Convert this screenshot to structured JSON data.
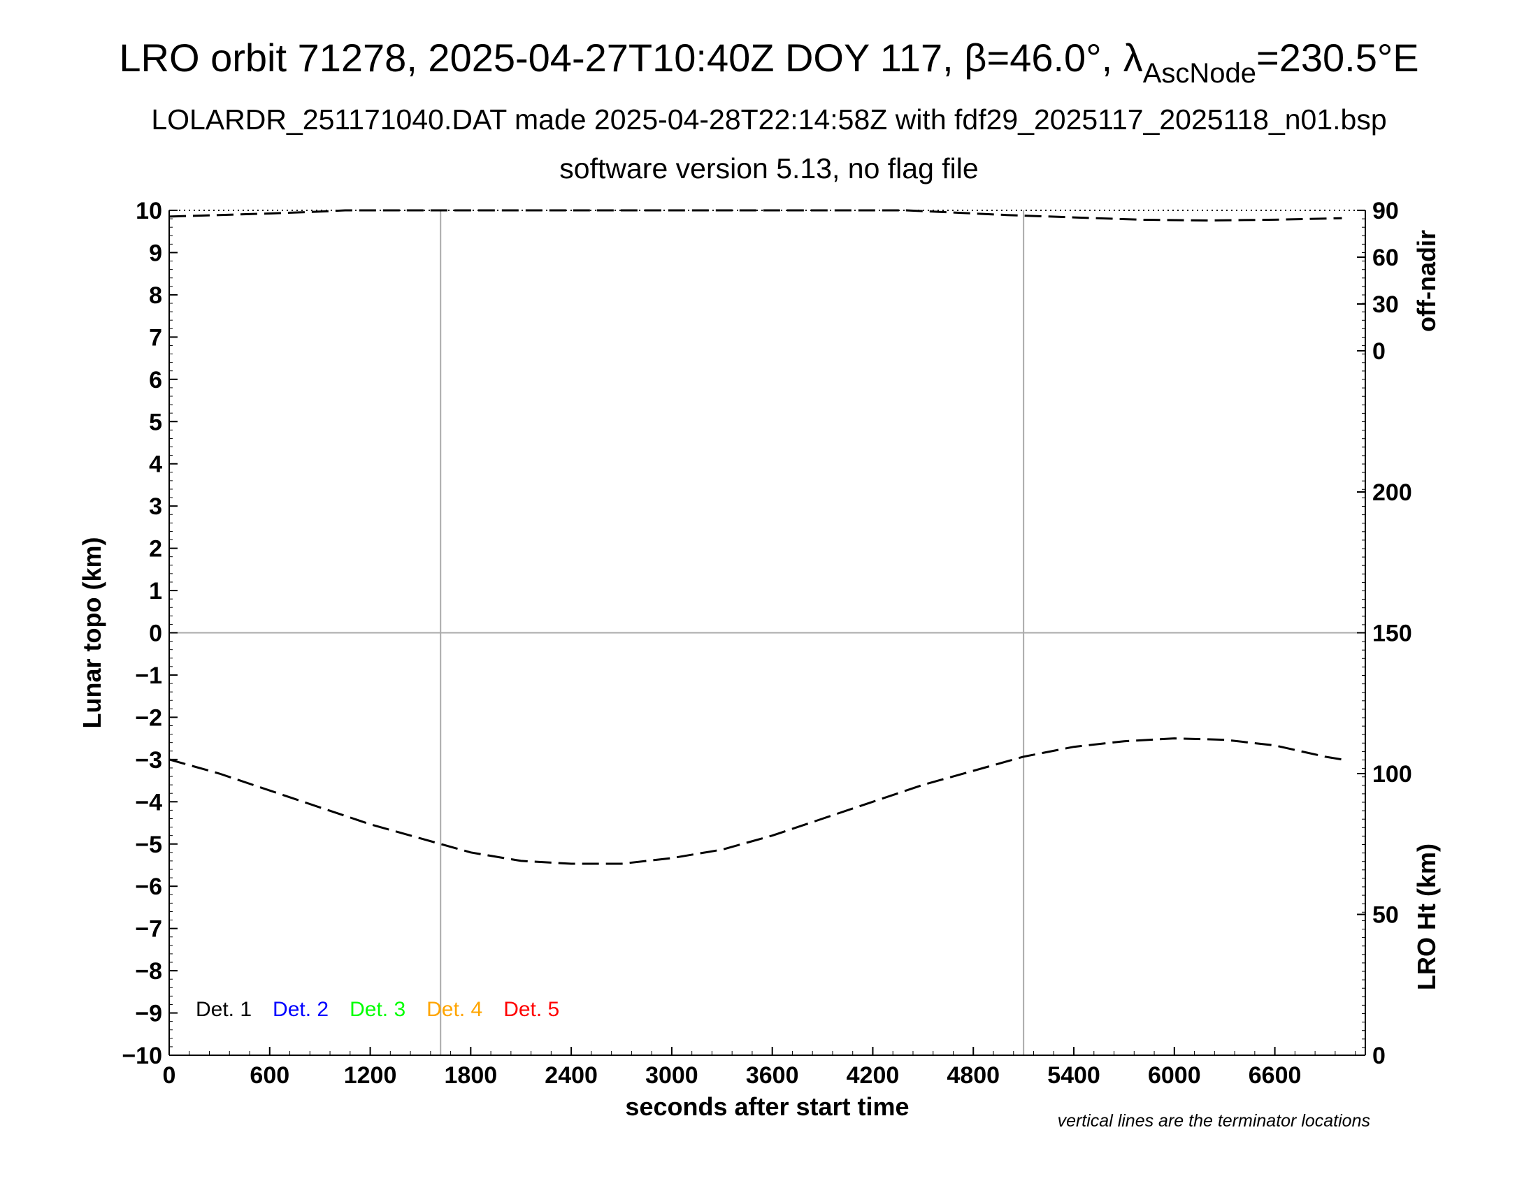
{
  "title": {
    "main": "LRO orbit 71278, 2025-04-27T10:40Z DOY 117, β=46.0°, λ",
    "subscript": "AscNode",
    "suffix": "=230.5°E",
    "line2": "LOLARDR_251171040.DAT made 2025-04-28T22:14:58Z with fdf29_2025117_2025118_n01.bsp",
    "line3": "software version 5.13, no flag file"
  },
  "footnote": "vertical lines are the terminator locations",
  "legend": [
    {
      "label": "Det. 1",
      "color": "#000000"
    },
    {
      "label": "Det. 2",
      "color": "#0000ff"
    },
    {
      "label": "Det. 3",
      "color": "#00ff00"
    },
    {
      "label": "Det. 4",
      "color": "#ffa500"
    },
    {
      "label": "Det. 5",
      "color": "#ff0000"
    }
  ],
  "chart_data": {
    "type": "line",
    "xlabel": "seconds after start time",
    "ylabel": "Lunar topo (km)",
    "xlim": [
      0,
      7140
    ],
    "ylim": [
      -10,
      10
    ],
    "xticks": [
      0,
      600,
      1200,
      1800,
      2400,
      3000,
      3600,
      4200,
      4800,
      5400,
      6000,
      6600
    ],
    "yticks": [
      10,
      9,
      8,
      7,
      6,
      5,
      4,
      3,
      2,
      1,
      0,
      -1,
      -2,
      -3,
      -4,
      -5,
      -6,
      -7,
      -8,
      -9,
      -10
    ],
    "y2_upper": {
      "label": "off-nadir",
      "ticks": [
        90,
        60,
        30,
        0
      ],
      "range": [
        0,
        90
      ]
    },
    "y2_lower": {
      "label": "LRO Ht (km)",
      "ticks": [
        200,
        150,
        100,
        50,
        0
      ],
      "range": [
        0,
        300
      ]
    },
    "terminator_lines_x": [
      1620,
      5100
    ],
    "zero_line_y": 0,
    "series": [
      {
        "axis": "off-nadir",
        "style": "dashed",
        "points": [
          [
            0,
            86.0
          ],
          [
            300,
            87.0
          ],
          [
            600,
            88.0
          ],
          [
            900,
            89.2
          ],
          [
            1050,
            90.0
          ],
          [
            4400,
            90.0
          ],
          [
            4600,
            89.0
          ],
          [
            5000,
            87.0
          ],
          [
            5400,
            85.5
          ],
          [
            5800,
            84.0
          ],
          [
            6200,
            83.5
          ],
          [
            6600,
            84.0
          ],
          [
            7000,
            85.0
          ]
        ]
      },
      {
        "axis": "LRO Ht (km)",
        "style": "dashed",
        "points": [
          [
            0,
            105
          ],
          [
            300,
            100
          ],
          [
            600,
            94
          ],
          [
            900,
            88
          ],
          [
            1200,
            82
          ],
          [
            1500,
            77
          ],
          [
            1800,
            72
          ],
          [
            2100,
            69
          ],
          [
            2400,
            68
          ],
          [
            2700,
            68
          ],
          [
            3000,
            70
          ],
          [
            3300,
            73
          ],
          [
            3600,
            78
          ],
          [
            3900,
            84
          ],
          [
            4200,
            90
          ],
          [
            4500,
            96
          ],
          [
            4800,
            101
          ],
          [
            5100,
            106
          ],
          [
            5400,
            109.5
          ],
          [
            5700,
            111.5
          ],
          [
            6000,
            112.5
          ],
          [
            6300,
            112
          ],
          [
            6600,
            110
          ],
          [
            6900,
            106
          ],
          [
            7000,
            105
          ]
        ]
      }
    ]
  }
}
